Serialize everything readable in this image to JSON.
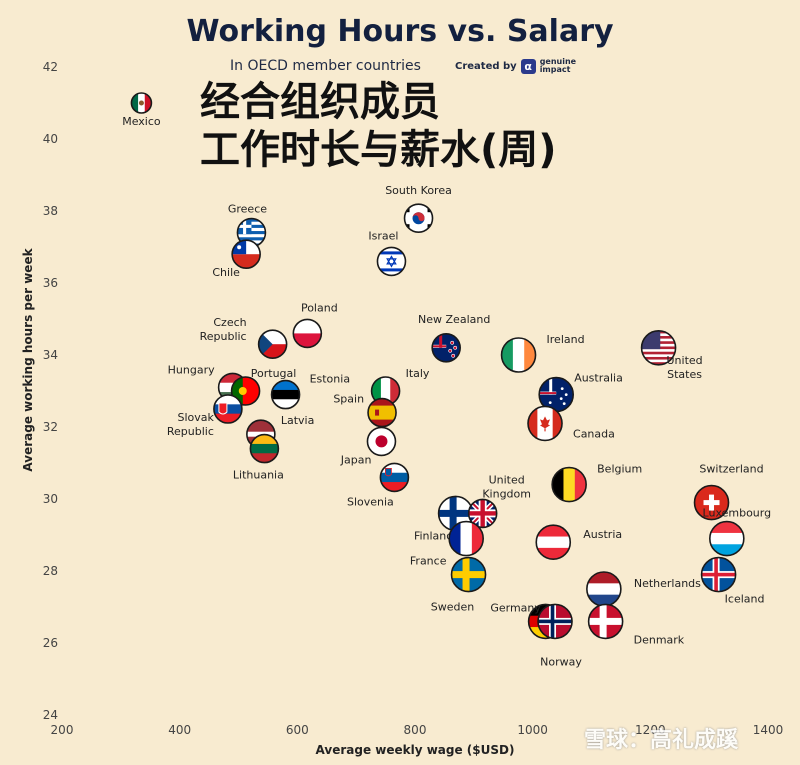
{
  "header": {
    "title": "Working Hours vs. Salary",
    "subtitle": "In OECD member countries",
    "credit_prefix": "Created by",
    "credit_brand": "genuine impact",
    "chinese_title_line1": "经合组织成员",
    "chinese_title_line2": "工作时长与薪水(周)"
  },
  "watermark": "雪球：高礼成蹊",
  "chart_data": {
    "type": "scatter",
    "xlabel": "Average weekly wage ($USD)",
    "ylabel": "Average working hours per week",
    "xlim": [
      200,
      1400
    ],
    "ylim": [
      24,
      42
    ],
    "xticks": [
      200,
      400,
      600,
      800,
      1000,
      1200,
      1400
    ],
    "yticks": [
      24,
      26,
      28,
      30,
      32,
      34,
      36,
      38,
      40,
      42
    ],
    "grid": false,
    "points": [
      {
        "name": "Mexico",
        "x": 335,
        "y": 41.0,
        "label": "Mexico",
        "flag": "mexico"
      },
      {
        "name": "Greece",
        "x": 522,
        "y": 37.4,
        "label": "Greece",
        "flag": "greece"
      },
      {
        "name": "Chile",
        "x": 513,
        "y": 36.8,
        "label": "Chile",
        "flag": "chile"
      },
      {
        "name": "South Korea",
        "x": 806,
        "y": 37.8,
        "label": "South Korea",
        "flag": "southkorea"
      },
      {
        "name": "Israel",
        "x": 760,
        "y": 36.6,
        "label": "Israel",
        "flag": "israel"
      },
      {
        "name": "Czech Republic",
        "x": 558,
        "y": 34.3,
        "label": "Czech Republic",
        "flag": "czech"
      },
      {
        "name": "Poland",
        "x": 617,
        "y": 34.6,
        "label": "Poland",
        "flag": "poland"
      },
      {
        "name": "New Zealand",
        "x": 853,
        "y": 34.2,
        "label": "New Zealand",
        "flag": "newzealand"
      },
      {
        "name": "Ireland",
        "x": 976,
        "y": 34.0,
        "label": "Ireland",
        "flag": "ireland"
      },
      {
        "name": "United States",
        "x": 1214,
        "y": 34.2,
        "label": "United States",
        "flag": "usa"
      },
      {
        "name": "Hungary",
        "x": 490,
        "y": 33.1,
        "label": "Hungary",
        "flag": "hungary"
      },
      {
        "name": "Portugal",
        "x": 512,
        "y": 33.0,
        "label": "Portugal",
        "flag": "portugal"
      },
      {
        "name": "Estonia",
        "x": 580,
        "y": 32.9,
        "label": "Estonia",
        "flag": "estonia"
      },
      {
        "name": "Italy",
        "x": 750,
        "y": 33.0,
        "label": "Italy",
        "flag": "italy"
      },
      {
        "name": "Australia",
        "x": 1040,
        "y": 32.9,
        "label": "Australia",
        "flag": "australia"
      },
      {
        "name": "Slovak Republic",
        "x": 482,
        "y": 32.5,
        "label": "Slovak Republic",
        "flag": "slovakia"
      },
      {
        "name": "Spain",
        "x": 744,
        "y": 32.4,
        "label": "Spain",
        "flag": "spain"
      },
      {
        "name": "Latvia",
        "x": 538,
        "y": 31.8,
        "label": "Latvia",
        "flag": "latvia"
      },
      {
        "name": "Canada",
        "x": 1021,
        "y": 32.1,
        "label": "Canada",
        "flag": "canada"
      },
      {
        "name": "Japan",
        "x": 743,
        "y": 31.6,
        "label": "Japan",
        "flag": "japan"
      },
      {
        "name": "Lithuania",
        "x": 544,
        "y": 31.4,
        "label": "Lithuania",
        "flag": "lithuania"
      },
      {
        "name": "Slovenia",
        "x": 765,
        "y": 30.6,
        "label": "Slovenia",
        "flag": "slovenia"
      },
      {
        "name": "Belgium",
        "x": 1062,
        "y": 30.4,
        "label": "Belgium",
        "flag": "belgium"
      },
      {
        "name": "Switzerland",
        "x": 1304,
        "y": 29.9,
        "label": "Switzerland",
        "flag": "switzerland"
      },
      {
        "name": "Finland",
        "x": 869,
        "y": 29.6,
        "label": "Finland",
        "flag": "finland"
      },
      {
        "name": "United Kingdom",
        "x": 915,
        "y": 29.6,
        "label": "United Kingdom",
        "flag": "uk"
      },
      {
        "name": "Luxembourg",
        "x": 1330,
        "y": 28.9,
        "label": "Luxembourg",
        "flag": "luxembourg"
      },
      {
        "name": "France",
        "x": 887,
        "y": 28.9,
        "label": "France",
        "flag": "france"
      },
      {
        "name": "Austria",
        "x": 1035,
        "y": 28.8,
        "label": "Austria",
        "flag": "austria"
      },
      {
        "name": "Sweden",
        "x": 891,
        "y": 27.9,
        "label": "Sweden",
        "flag": "sweden"
      },
      {
        "name": "Iceland",
        "x": 1316,
        "y": 27.9,
        "label": "Iceland",
        "flag": "iceland"
      },
      {
        "name": "Netherlands",
        "x": 1121,
        "y": 27.5,
        "label": "Netherlands",
        "flag": "netherlands"
      },
      {
        "name": "Germany",
        "x": 1022,
        "y": 26.6,
        "label": "Germany",
        "flag": "germany"
      },
      {
        "name": "Norway",
        "x": 1038,
        "y": 26.6,
        "label": "Norway",
        "flag": "norway"
      },
      {
        "name": "Denmark",
        "x": 1124,
        "y": 26.6,
        "label": "Denmark",
        "flag": "denmark"
      }
    ]
  }
}
